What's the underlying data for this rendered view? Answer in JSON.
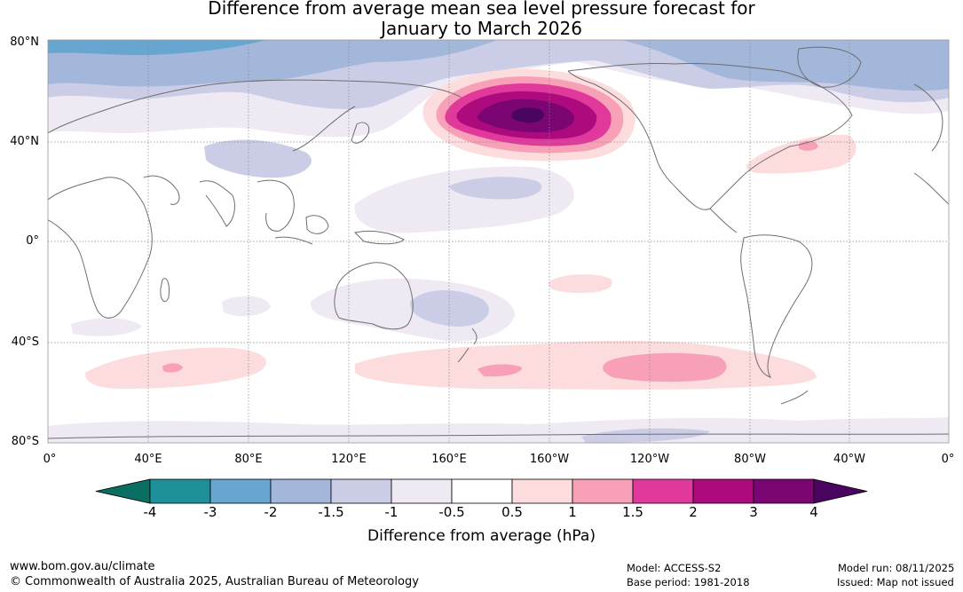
{
  "title": {
    "line1": "Difference from average mean sea level pressure forecast for",
    "line2": "January to March 2026"
  },
  "map": {
    "lat_labels": [
      "80°N",
      "40°N",
      "0°",
      "40°S",
      "80°S"
    ],
    "lon_labels": [
      "0°",
      "40°E",
      "80°E",
      "120°E",
      "160°E",
      "160°W",
      "120°W",
      "80°W",
      "40°W",
      "0°"
    ],
    "colors": {
      "ocean": "#ffffff",
      "land_outline": "#6e6e6e",
      "grid": "#888888"
    }
  },
  "chart_data": {
    "type": "heatmap",
    "title": "Difference from average mean sea level pressure forecast for January to March 2026",
    "variable": "Difference from average (hPa)",
    "period": "January to March 2026",
    "colorbar": {
      "label": "Difference from average (hPa)",
      "ticks": [
        "-4",
        "-3",
        "-2",
        "-1.5",
        "-1",
        "-0.5",
        "0.5",
        "1",
        "1.5",
        "2",
        "3",
        "4"
      ],
      "bins": [
        {
          "range": "< -4",
          "color": "#0b6e63"
        },
        {
          "range": "-4 to -3",
          "color": "#1e9099"
        },
        {
          "range": "-3 to -2",
          "color": "#66a6d0"
        },
        {
          "range": "-2 to -1.5",
          "color": "#a2b7d9"
        },
        {
          "range": "-1.5 to -1",
          "color": "#cbcde6"
        },
        {
          "range": "-1 to -0.5",
          "color": "#efe9f3"
        },
        {
          "range": "-0.5 to 0.5",
          "color": "#ffffff"
        },
        {
          "range": "0.5 to 1",
          "color": "#fcdcdc"
        },
        {
          "range": "1 to 1.5",
          "color": "#f7a0b8"
        },
        {
          "range": "1.5 to 2",
          "color": "#e0399b"
        },
        {
          "range": "2 to 3",
          "color": "#ad0a7d"
        },
        {
          "range": "3 to 4",
          "color": "#7b0673"
        },
        {
          "range": "> 4",
          "color": "#4a0561"
        }
      ]
    },
    "features": [
      {
        "region": "North Pacific / Gulf of Alaska",
        "anomaly_hPa": "> 4",
        "sign": "positive",
        "peak": true
      },
      {
        "region": "Arctic / northern Eurasia and Canada",
        "anomaly_hPa": "-1 to -3",
        "sign": "negative"
      },
      {
        "region": "Central North Atlantic",
        "anomaly_hPa": "0.5 to 1.5",
        "sign": "positive"
      },
      {
        "region": "Southern Ocean mid-latitudes",
        "anomaly_hPa": "0.5 to 1.5",
        "sign": "positive"
      },
      {
        "region": "Tropical western Pacific",
        "anomaly_hPa": "-0.5 to -1.5",
        "sign": "negative"
      },
      {
        "region": "East of Australia / Tasman Sea",
        "anomaly_hPa": "-0.5 to -1.5",
        "sign": "negative"
      }
    ]
  },
  "footer": {
    "website": "www.bom.gov.au/climate",
    "copyright": "© Commonwealth of Australia 2025, Australian Bureau of Meteorology",
    "model": "Model: ACCESS-S2",
    "base_period": "Base period: 1981-2018",
    "model_run": "Model run: 08/11/2025",
    "issued": "Issued: Map not issued"
  }
}
